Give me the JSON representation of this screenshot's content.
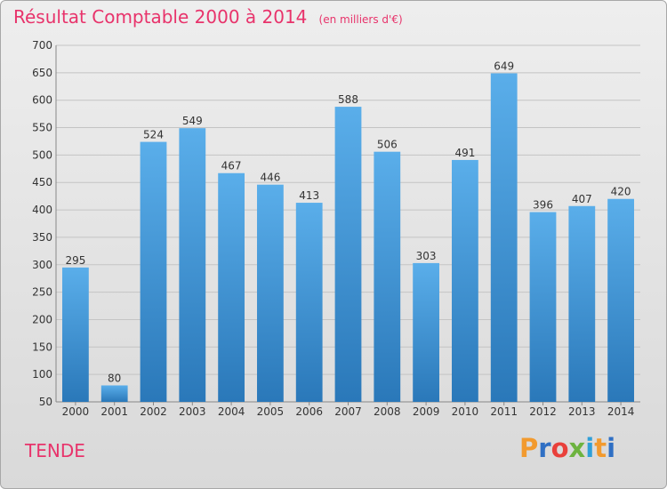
{
  "title": "Résultat Comptable 2000 à 2014",
  "unit": "(en milliers d'€)",
  "town": "TENDE",
  "logo": {
    "letters": [
      "P",
      "r",
      "o",
      "x",
      "i",
      "t",
      "i"
    ],
    "colors": [
      "#f29a2e",
      "#2f6fc4",
      "#e9403b",
      "#6db33f",
      "#2f9fd8",
      "#f29a2e",
      "#2f6fc4"
    ]
  },
  "colors": {
    "accent": "#e8336b",
    "bar_top": "#5aaeea",
    "bar_bottom": "#2a78b9"
  },
  "chart_data": {
    "type": "bar",
    "title": "Résultat Comptable 2000 à 2014",
    "xlabel": "",
    "ylabel": "",
    "categories": [
      "2000",
      "2001",
      "2002",
      "2003",
      "2004",
      "2005",
      "2006",
      "2007",
      "2008",
      "2009",
      "2010",
      "2011",
      "2012",
      "2013",
      "2014"
    ],
    "values": [
      295,
      80,
      524,
      549,
      467,
      446,
      413,
      588,
      506,
      303,
      491,
      649,
      396,
      407,
      420
    ],
    "ylim": [
      50,
      700
    ],
    "yticks": [
      50,
      100,
      150,
      200,
      250,
      300,
      350,
      400,
      450,
      500,
      550,
      600,
      650,
      700
    ],
    "grid": true
  }
}
